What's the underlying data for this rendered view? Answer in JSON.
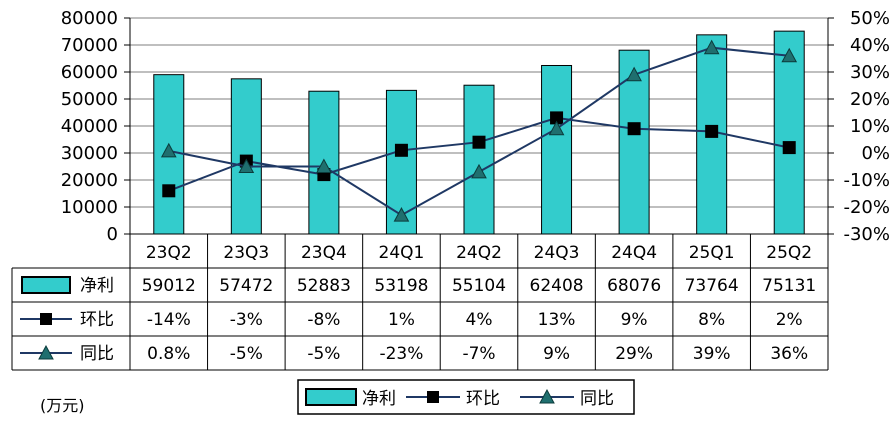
{
  "chart_data": {
    "type": "bar",
    "unit_label": "(万元)",
    "categories": [
      "23Q2",
      "23Q3",
      "23Q4",
      "24Q1",
      "24Q2",
      "24Q3",
      "24Q4",
      "25Q1",
      "25Q2"
    ],
    "series": [
      {
        "name": "净利",
        "kind": "bar",
        "axis": "left",
        "color": "#33cccc",
        "values": [
          59012,
          57472,
          52883,
          53198,
          55104,
          62408,
          68076,
          73764,
          75131
        ],
        "table_labels": [
          "59012",
          "57472",
          "52883",
          "53198",
          "55104",
          "62408",
          "68076",
          "73764",
          "75131"
        ]
      },
      {
        "name": "环比",
        "kind": "line",
        "marker": "square",
        "axis": "right",
        "color": "#1f3864",
        "values": [
          -14,
          -3,
          -8,
          1,
          4,
          13,
          9,
          8,
          2
        ],
        "table_labels": [
          "-14%",
          "-3%",
          "-8%",
          "1%",
          "4%",
          "13%",
          "9%",
          "8%",
          "2%"
        ]
      },
      {
        "name": "同比",
        "kind": "line",
        "marker": "triangle",
        "axis": "right",
        "color": "#1f3864",
        "values": [
          0.8,
          -5,
          -5,
          -23,
          -7,
          9,
          29,
          39,
          36
        ],
        "table_labels": [
          "0.8%",
          "-5%",
          "-5%",
          "-23%",
          "-7%",
          "9%",
          "29%",
          "39%",
          "36%"
        ]
      }
    ],
    "y_left": {
      "min": 0,
      "max": 80000,
      "step": 10000,
      "tick_labels": [
        "0",
        "10000",
        "20000",
        "30000",
        "40000",
        "50000",
        "60000",
        "70000",
        "80000"
      ]
    },
    "y_right": {
      "min": -30,
      "max": 50,
      "step": 10,
      "tick_labels": [
        "-30%",
        "-20%",
        "-10%",
        "0%",
        "10%",
        "20%",
        "30%",
        "40%",
        "50%"
      ]
    },
    "grid": true,
    "legend_position": "bottom",
    "data_table": true
  }
}
